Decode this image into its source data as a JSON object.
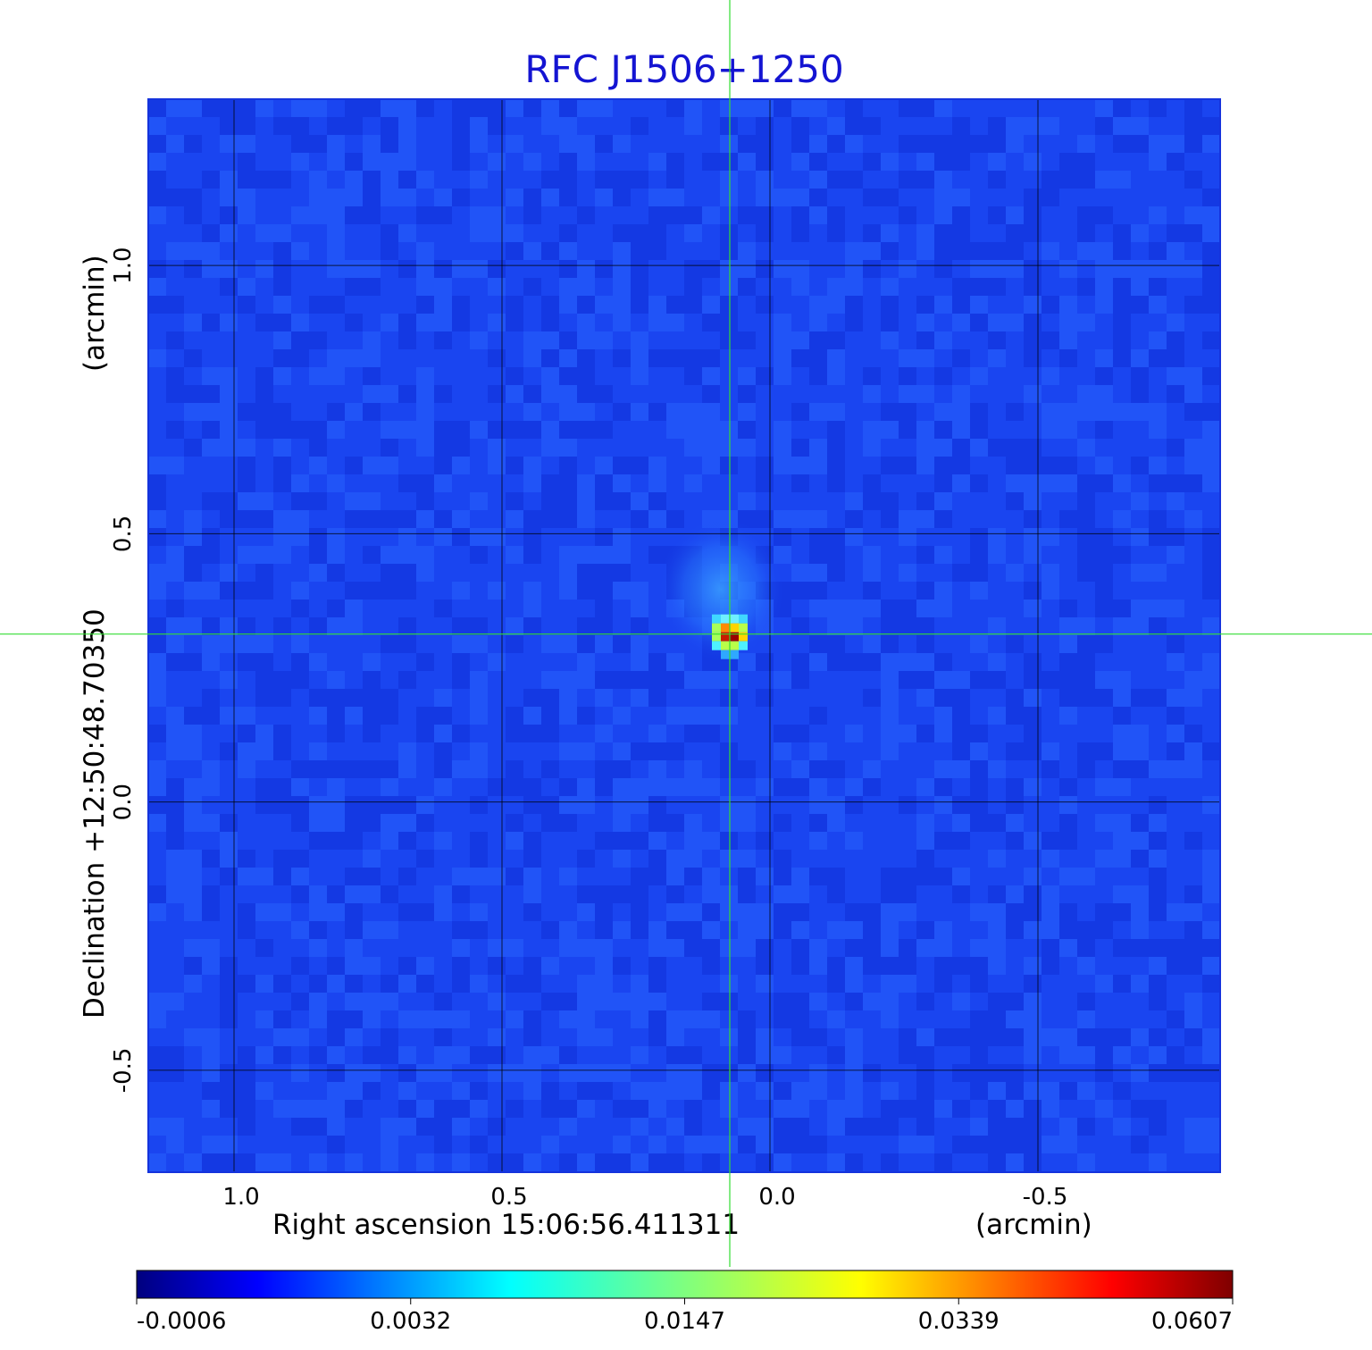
{
  "colors": {
    "title": "#1414d2",
    "background_map": "#1a45f0",
    "grid": "#000000",
    "crosshair": "#33dd33"
  },
  "chart_data": {
    "type": "heatmap",
    "title": "RFC J1506+1250",
    "xlabel": "Right ascension  15:06:56.411311",
    "xlabel_unit": "(arcmin)",
    "ylabel": "Declination  +12:50:48.70350",
    "ylabel_unit": "(arcmin)",
    "x_unit": "arcmin",
    "y_unit": "arcmin",
    "xlim": [
      1.16,
      -0.84
    ],
    "ylim": [
      -0.69,
      1.31
    ],
    "x_ticks": [
      {
        "value": 1.0,
        "label": "1.0"
      },
      {
        "value": 0.5,
        "label": "0.5"
      },
      {
        "value": 0.0,
        "label": "0.0"
      },
      {
        "value": -0.5,
        "label": "-0.5"
      }
    ],
    "y_ticks": [
      {
        "value": 1.0,
        "label": "1.0"
      },
      {
        "value": 0.5,
        "label": "0.5"
      },
      {
        "value": 0.0,
        "label": "0.0"
      },
      {
        "value": -0.5,
        "label": "-0.5"
      }
    ],
    "grid": true,
    "crosshair": {
      "x": 0.075,
      "y": 0.313
    },
    "source": {
      "x": 0.075,
      "y": 0.313,
      "peak": 0.0607
    },
    "colormap": "jet",
    "colorbar": {
      "placement": "bottom",
      "ticks": [
        "-0.0006",
        "0.0032",
        "0.0147",
        "0.0339",
        "0.0607"
      ]
    }
  }
}
